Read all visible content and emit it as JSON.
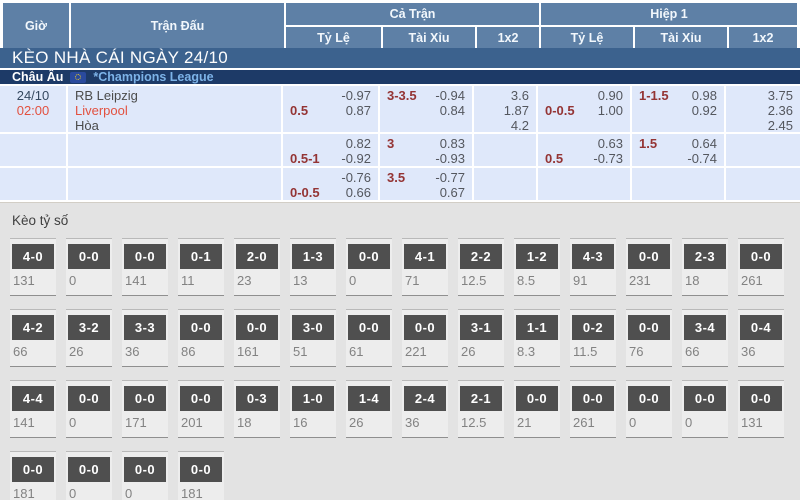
{
  "header": {
    "col_time": "Giờ",
    "col_match": "Trận Đấu",
    "group_full": "Cả Trận",
    "group_half": "Hiệp 1",
    "sub_handicap_full": "Tỷ Lệ",
    "sub_ou_full": "Tài Xỉu",
    "sub_1x2_full": "1x2",
    "sub_handicap_half": "Tỷ Lệ",
    "sub_ou_half": "Tài Xỉu",
    "sub_1x2_half": "1x2"
  },
  "banner": {
    "title": "KÈO NHÀ CÁI NGÀY 24/10"
  },
  "league_bar": {
    "region": "Châu Âu",
    "flag": "eu-flag-icon",
    "league": "*Champions League"
  },
  "match": {
    "date": "24/10",
    "time": "02:00",
    "home": "RB Leipzig",
    "away": "Liverpool",
    "draw": "Hòa",
    "rows": [
      {
        "full_hdp": {
          "hdp": "0.5",
          "top": "-0.97",
          "bottom": "0.87"
        },
        "full_ou": {
          "line": "3-3.5",
          "top": "-0.94",
          "bottom": "0.84"
        },
        "full_1x2": {
          "home": "3.6",
          "away": "1.87",
          "draw": "4.2"
        },
        "half_hdp": {
          "hdp": "0-0.5",
          "top": "0.90",
          "bottom": "1.00"
        },
        "half_ou": {
          "line": "1-1.5",
          "top": "0.98",
          "bottom": "0.92"
        },
        "half_1x2": {
          "home": "3.75",
          "away": "2.36",
          "draw": "2.45"
        }
      },
      {
        "full_hdp": {
          "hdp": "0.5-1",
          "top": "0.82",
          "bottom": "-0.92"
        },
        "full_ou": {
          "line": "3",
          "top": "0.83",
          "bottom": "-0.93"
        },
        "full_1x2": {
          "home": "",
          "away": "",
          "draw": ""
        },
        "half_hdp": {
          "hdp": "0.5",
          "top": "0.63",
          "bottom": "-0.73"
        },
        "half_ou": {
          "line": "1.5",
          "top": "0.64",
          "bottom": "-0.74"
        },
        "half_1x2": {
          "home": "",
          "away": "",
          "draw": ""
        }
      },
      {
        "full_hdp": {
          "hdp": "0-0.5",
          "top": "-0.76",
          "bottom": "0.66"
        },
        "full_ou": {
          "line": "3.5",
          "top": "-0.77",
          "bottom": "0.67"
        },
        "full_1x2": {
          "home": "",
          "away": "",
          "draw": ""
        },
        "half_hdp": {
          "hdp": "",
          "top": "",
          "bottom": ""
        },
        "half_ou": {
          "line": "",
          "top": "",
          "bottom": ""
        },
        "half_1x2": {
          "home": "",
          "away": "",
          "draw": ""
        }
      }
    ]
  },
  "score_section": {
    "title": "Kèo tỷ số",
    "rows": [
      [
        {
          "score": "4-0",
          "odds": "131"
        },
        {
          "score": "0-0",
          "odds": "0"
        },
        {
          "score": "0-0",
          "odds": "141"
        },
        {
          "score": "0-1",
          "odds": "11"
        },
        {
          "score": "2-0",
          "odds": "23"
        },
        {
          "score": "1-3",
          "odds": "13"
        },
        {
          "score": "0-0",
          "odds": "0"
        },
        {
          "score": "4-1",
          "odds": "71"
        },
        {
          "score": "2-2",
          "odds": "12.5"
        },
        {
          "score": "1-2",
          "odds": "8.5"
        },
        {
          "score": "4-3",
          "odds": "91"
        },
        {
          "score": "0-0",
          "odds": "231"
        },
        {
          "score": "2-3",
          "odds": "18"
        },
        {
          "score": "0-0",
          "odds": "261"
        }
      ],
      [
        {
          "score": "4-2",
          "odds": "66"
        },
        {
          "score": "3-2",
          "odds": "26"
        },
        {
          "score": "3-3",
          "odds": "36"
        },
        {
          "score": "0-0",
          "odds": "86"
        },
        {
          "score": "0-0",
          "odds": "161"
        },
        {
          "score": "3-0",
          "odds": "51"
        },
        {
          "score": "0-0",
          "odds": "61"
        },
        {
          "score": "0-0",
          "odds": "221"
        },
        {
          "score": "3-1",
          "odds": "26"
        },
        {
          "score": "1-1",
          "odds": "8.3"
        },
        {
          "score": "0-2",
          "odds": "11.5"
        },
        {
          "score": "0-0",
          "odds": "76"
        },
        {
          "score": "3-4",
          "odds": "66"
        },
        {
          "score": "0-4",
          "odds": "36"
        }
      ],
      [
        {
          "score": "4-4",
          "odds": "141"
        },
        {
          "score": "0-0",
          "odds": "0"
        },
        {
          "score": "0-0",
          "odds": "171"
        },
        {
          "score": "0-0",
          "odds": "201"
        },
        {
          "score": "0-3",
          "odds": "18"
        },
        {
          "score": "1-0",
          "odds": "16"
        },
        {
          "score": "1-4",
          "odds": "26"
        },
        {
          "score": "2-4",
          "odds": "36"
        },
        {
          "score": "2-1",
          "odds": "12.5"
        },
        {
          "score": "0-0",
          "odds": "21"
        },
        {
          "score": "0-0",
          "odds": "261"
        },
        {
          "score": "0-0",
          "odds": "0"
        },
        {
          "score": "0-0",
          "odds": "0"
        },
        {
          "score": "0-0",
          "odds": "131"
        }
      ],
      [
        {
          "score": "0-0",
          "odds": "181"
        },
        {
          "score": "0-0",
          "odds": "0"
        },
        {
          "score": "0-0",
          "odds": "0"
        },
        {
          "score": "0-0",
          "odds": "181"
        }
      ]
    ]
  },
  "colors": {
    "header_blue": "#5e80a6",
    "banner_blue": "#3c628e",
    "navy": "#1d3a67",
    "row_blue": "#dfe8fa",
    "league_link_blue": "#7db3e8",
    "accent_red": "#e25140",
    "handicap_maroon": "#943434",
    "odds_gray": "#54575e",
    "section_gray": "#e3e3e3",
    "score_box_gray": "#4f4f4f"
  }
}
